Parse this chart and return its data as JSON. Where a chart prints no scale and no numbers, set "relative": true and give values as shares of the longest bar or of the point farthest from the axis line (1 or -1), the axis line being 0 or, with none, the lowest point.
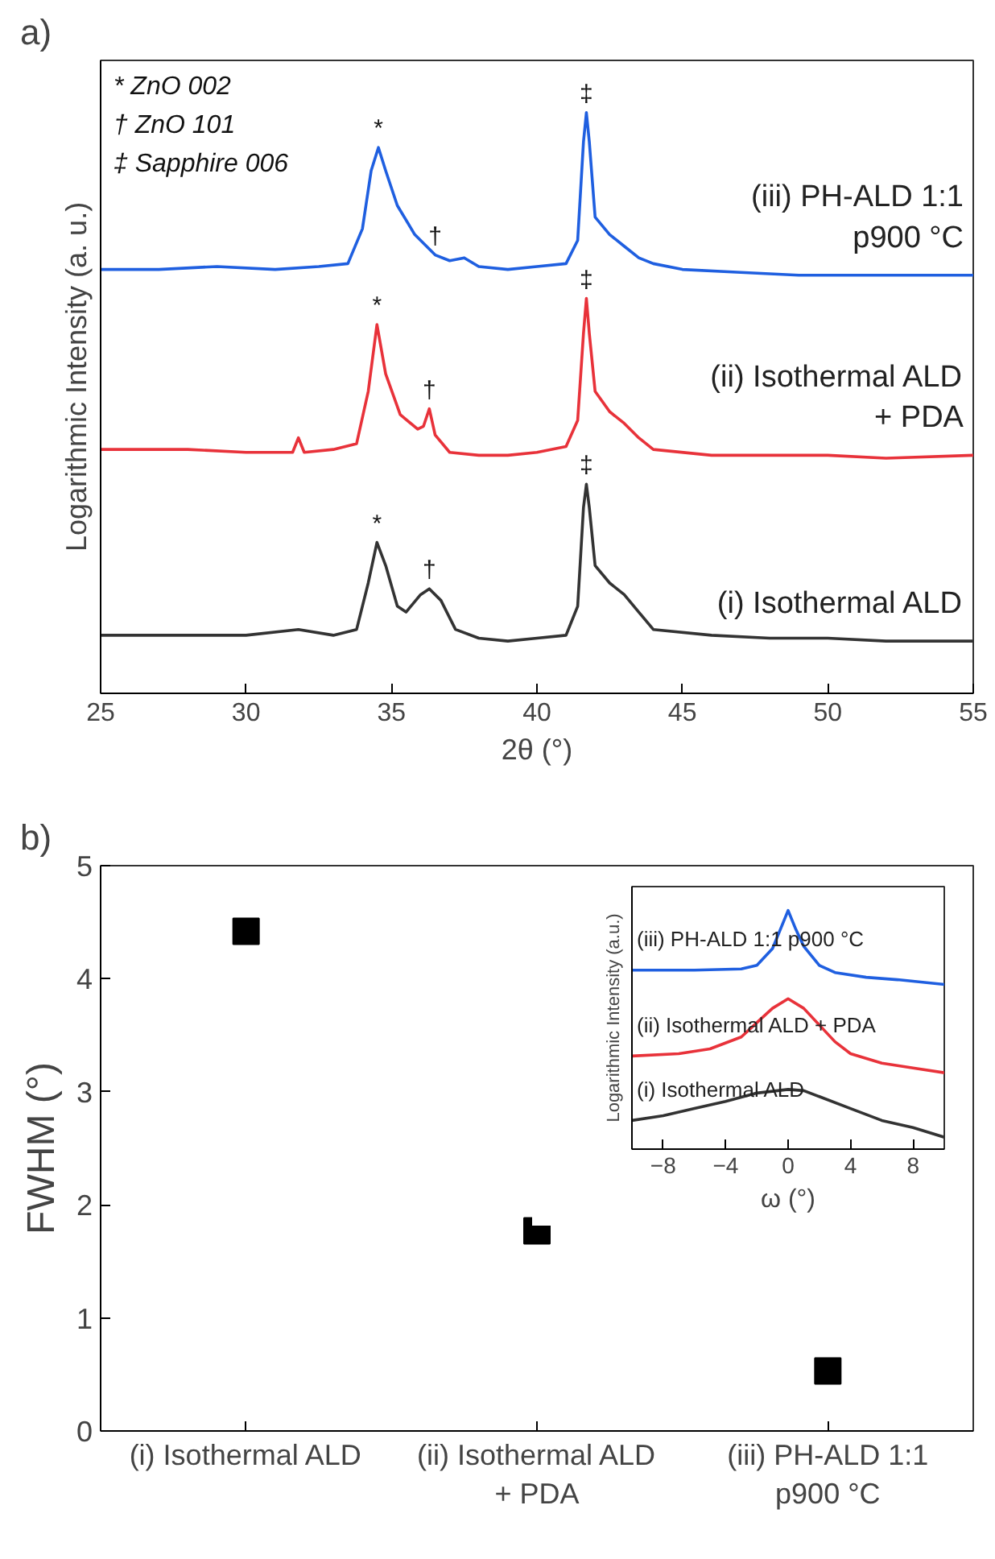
{
  "chart_data": [
    {
      "type": "line",
      "title": "a)",
      "xlabel": "2θ (°)",
      "ylabel": "Logarithmic Intensity (a. u.)",
      "relative": true,
      "xlim": [
        25,
        55
      ],
      "xticks": [
        25,
        30,
        35,
        40,
        45,
        50,
        55
      ],
      "grid": false,
      "legend": false,
      "marker": "none",
      "line_style": "solid",
      "series": [
        {
          "name": "(iii) PH-ALD 1:1\np900 °C",
          "color": "#1f5fe0",
          "x": [
            25,
            27,
            29,
            31,
            32.5,
            33.5,
            34.0,
            34.3,
            34.55,
            34.8,
            35.2,
            35.8,
            36.5,
            37,
            37.5,
            38,
            39,
            40,
            41,
            41.4,
            41.6,
            41.7,
            41.8,
            42.0,
            42.5,
            43,
            43.5,
            44,
            45,
            47,
            49,
            51,
            53,
            55
          ],
          "values": [
            0.73,
            0.73,
            0.735,
            0.73,
            0.735,
            0.74,
            0.8,
            0.9,
            0.94,
            0.9,
            0.84,
            0.79,
            0.755,
            0.745,
            0.75,
            0.735,
            0.73,
            0.735,
            0.74,
            0.78,
            0.95,
            1.0,
            0.95,
            0.82,
            0.79,
            0.77,
            0.75,
            0.74,
            0.73,
            0.725,
            0.72,
            0.72,
            0.72,
            0.72
          ]
        },
        {
          "name": "(ii) Isothermal ALD\n+ PDA",
          "color": "#e8323a",
          "x": [
            25,
            28,
            30,
            31.6,
            31.8,
            32.0,
            33,
            33.8,
            34.2,
            34.5,
            34.8,
            35.3,
            35.9,
            36.1,
            36.3,
            36.5,
            37,
            38,
            39,
            40,
            41,
            41.4,
            41.6,
            41.7,
            41.8,
            42,
            42.5,
            43,
            43.5,
            44,
            46,
            48,
            50,
            52,
            55
          ],
          "values": [
            0.42,
            0.42,
            0.415,
            0.415,
            0.44,
            0.415,
            0.42,
            0.43,
            0.52,
            0.635,
            0.55,
            0.48,
            0.455,
            0.46,
            0.49,
            0.445,
            0.415,
            0.41,
            0.41,
            0.415,
            0.425,
            0.47,
            0.62,
            0.68,
            0.62,
            0.52,
            0.485,
            0.465,
            0.44,
            0.42,
            0.41,
            0.41,
            0.41,
            0.405,
            0.41
          ]
        },
        {
          "name": "(i) Isothermal ALD",
          "color": "#333333",
          "x": [
            25,
            28,
            30,
            31.8,
            33,
            33.8,
            34.2,
            34.5,
            34.8,
            35.2,
            35.5,
            36.0,
            36.3,
            36.7,
            37.2,
            38,
            39,
            40,
            41,
            41.4,
            41.6,
            41.7,
            41.8,
            42,
            42.5,
            43,
            43.5,
            44,
            46,
            48,
            50,
            52,
            55
          ],
          "values": [
            0.1,
            0.1,
            0.1,
            0.11,
            0.1,
            0.11,
            0.19,
            0.26,
            0.22,
            0.15,
            0.14,
            0.17,
            0.18,
            0.16,
            0.11,
            0.095,
            0.09,
            0.095,
            0.1,
            0.15,
            0.32,
            0.36,
            0.32,
            0.22,
            0.19,
            0.17,
            0.14,
            0.11,
            0.1,
            0.095,
            0.095,
            0.09,
            0.09
          ]
        }
      ],
      "annotations": [
        "* ZnO 002",
        "† ZnO 101",
        "‡ Sapphire 006",
        {
          "text": "*",
          "x": 34.55,
          "y": 0.94
        },
        {
          "text": "†",
          "x": 36.5,
          "y": 0.755
        },
        {
          "text": "‡",
          "x": 41.7,
          "y": 1.0
        },
        {
          "text": "*",
          "x": 34.5,
          "y": 0.635
        },
        {
          "text": "†",
          "x": 36.3,
          "y": 0.49
        },
        {
          "text": "‡",
          "x": 41.7,
          "y": 0.68
        },
        {
          "text": "*",
          "x": 34.5,
          "y": 0.26
        },
        {
          "text": "†",
          "x": 36.3,
          "y": 0.18
        },
        {
          "text": "‡",
          "x": 41.7,
          "y": 0.36
        }
      ]
    },
    {
      "type": "scatter",
      "title": "b)",
      "ylabel": "FWHM (°)",
      "categories": [
        "(i) Isothermal ALD",
        "(ii) Isothermal ALD\n+ PDA",
        "(iii) PH-ALD 1:1\np900 °C"
      ],
      "values": [
        4.42,
        1.77,
        0.53
      ],
      "color": "#000000",
      "marker": "square",
      "ylim": [
        0,
        5
      ],
      "yticks": [
        0,
        1,
        2,
        3,
        4,
        5
      ],
      "grid": false,
      "legend": false
    },
    {
      "type": "line",
      "xlabel": "ω (°)",
      "ylabel": "Logarithmic Intensity (a.u.)",
      "relative": true,
      "xlim": [
        -10,
        10
      ],
      "xticks": [
        -8,
        -4,
        0,
        4,
        8
      ],
      "grid": false,
      "legend": false,
      "marker": "none",
      "line_style": "solid",
      "series": [
        {
          "name": "(iii) PH-ALD 1:1 p900 °C",
          "color": "#1f5fe0",
          "x": [
            -10,
            -6,
            -3,
            -2,
            -1,
            -0.5,
            0,
            0.5,
            1,
            2,
            3,
            5,
            7,
            10
          ],
          "values": [
            0.75,
            0.75,
            0.755,
            0.77,
            0.84,
            0.92,
            1.0,
            0.92,
            0.85,
            0.77,
            0.74,
            0.72,
            0.71,
            0.69
          ]
        },
        {
          "name": "(ii) Isothermal ALD + PDA",
          "color": "#e8323a",
          "x": [
            -10,
            -7,
            -5,
            -3,
            -2,
            -1,
            0,
            1,
            2,
            3,
            4,
            6,
            8,
            10
          ],
          "values": [
            0.39,
            0.4,
            0.42,
            0.47,
            0.53,
            0.59,
            0.63,
            0.59,
            0.52,
            0.45,
            0.4,
            0.36,
            0.34,
            0.32
          ]
        },
        {
          "name": "(i) Isothermal ALD",
          "color": "#333333",
          "x": [
            -10,
            -8,
            -6,
            -4,
            -2,
            0,
            1,
            2,
            4,
            6,
            8,
            10
          ],
          "values": [
            0.12,
            0.14,
            0.17,
            0.2,
            0.235,
            0.25,
            0.245,
            0.22,
            0.17,
            0.12,
            0.09,
            0.05
          ]
        }
      ]
    }
  ]
}
